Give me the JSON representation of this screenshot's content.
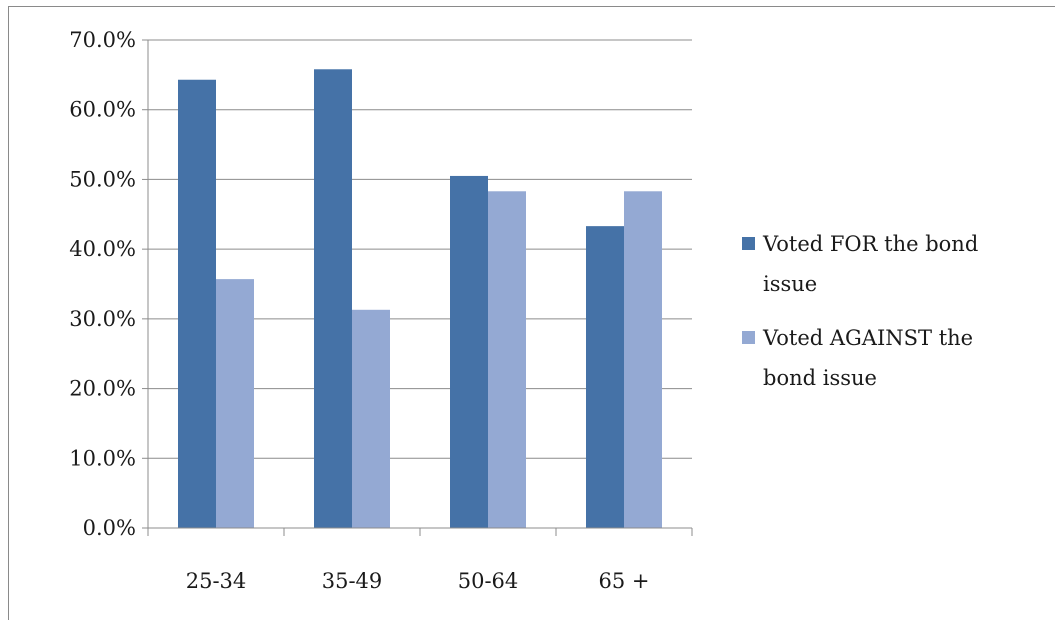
{
  "chart_data": {
    "type": "bar",
    "title": "",
    "xlabel": "",
    "ylabel": "",
    "categories": [
      "25-34",
      "35-49",
      "50-64",
      "65 +"
    ],
    "series": [
      {
        "name": "Voted FOR the bond issue",
        "legend_lines": [
          "Voted FOR the bond",
          "issue"
        ],
        "color": "#4572a7",
        "values": [
          64.3,
          65.8,
          50.5,
          43.3
        ]
      },
      {
        "name": "Voted AGAINST the bond issue",
        "legend_lines": [
          "Voted AGAINST the",
          "bond issue"
        ],
        "color": "#94a9d3",
        "values": [
          35.7,
          31.3,
          48.3,
          48.3
        ]
      }
    ],
    "ylim": [
      0,
      70
    ],
    "yticks": [
      0,
      10,
      20,
      30,
      40,
      50,
      60,
      70
    ],
    "ytick_labels": [
      "0.0%",
      "10.0%",
      "20.0%",
      "30.0%",
      "40.0%",
      "50.0%",
      "60.0%",
      "70.0%"
    ],
    "grid": true,
    "legend_position": "right"
  }
}
